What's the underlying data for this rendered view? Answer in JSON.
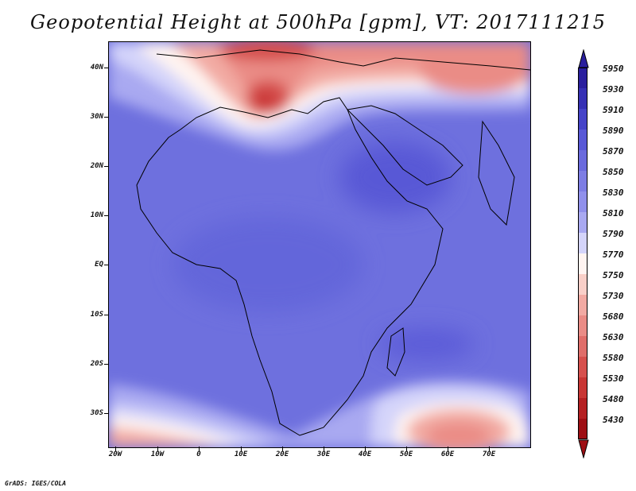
{
  "title": "Geopotential Height at 500hPa [gpm], VT: 2017111215",
  "footer": "GrADS: IGES/COLA",
  "lat_labels": [
    "40N",
    "30N",
    "20N",
    "10N",
    "EQ",
    "10S",
    "20S",
    "30S"
  ],
  "lon_labels": [
    "20W",
    "10W",
    "0",
    "10E",
    "20E",
    "30E",
    "40E",
    "50E",
    "60E",
    "70E"
  ],
  "colorbar": {
    "levels": [
      "5950",
      "5930",
      "5910",
      "5890",
      "5870",
      "5850",
      "5830",
      "5810",
      "5790",
      "5770",
      "5750",
      "5730",
      "5680",
      "5630",
      "5580",
      "5530",
      "5480",
      "5430"
    ],
    "colors": [
      "#2a1f9e",
      "#3630b4",
      "#4543c8",
      "#5858d6",
      "#6a6add",
      "#7d7de4",
      "#9090eb",
      "#a9a9f1",
      "#d4d4fa",
      "#fff4f1",
      "#f9cfc8",
      "#f2aaa3",
      "#ea8c86",
      "#e06e6a",
      "#d6504d",
      "#c83634",
      "#b42022",
      "#9e0f14"
    ]
  },
  "map": {
    "region": "Africa and surrounding regions",
    "lon_range": [
      -23,
      80
    ],
    "lat_range": [
      -37,
      45
    ]
  }
}
